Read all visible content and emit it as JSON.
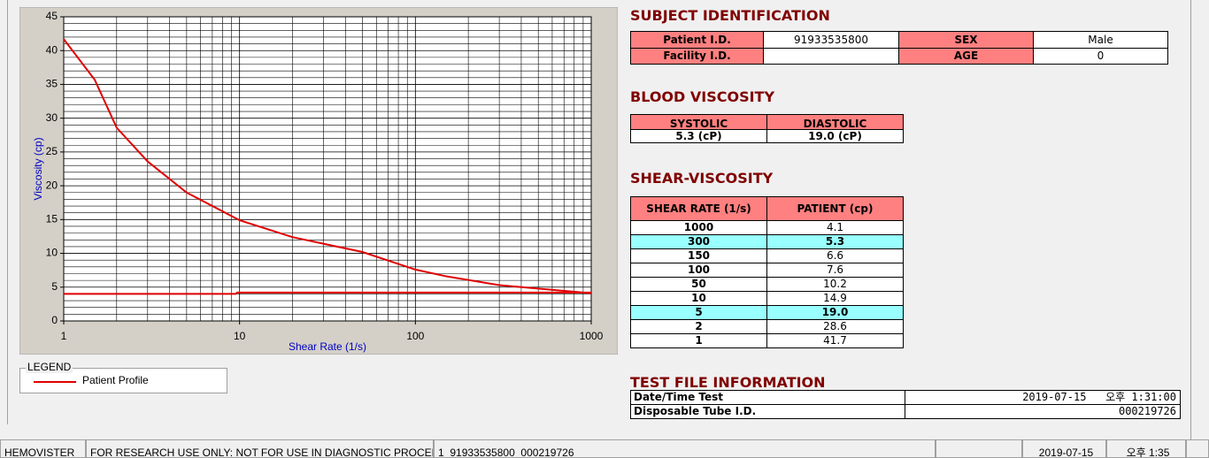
{
  "chart_data": {
    "type": "line",
    "xlabel": "Shear Rate (1/s)",
    "ylabel": "Viscosity (cp)",
    "xscale": "log",
    "xlim": [
      1,
      1000
    ],
    "xticks": [
      1,
      10,
      100,
      1000
    ],
    "ylim": [
      0,
      45
    ],
    "yticks": [
      0,
      5,
      10,
      15,
      20,
      25,
      30,
      35,
      40,
      45
    ],
    "grid": true,
    "series": [
      {
        "name": "Patient Profile",
        "color": "#e00000",
        "x": [
          1,
          1.5,
          2,
          3,
          5,
          10,
          20,
          50,
          100,
          150,
          300,
          1000
        ],
        "values": [
          41.7,
          35.7,
          28.6,
          23.6,
          19.0,
          14.9,
          12.4,
          10.2,
          7.6,
          6.6,
          5.3,
          4.1
        ]
      },
      {
        "color": "#e00000",
        "x": [
          1,
          9.5,
          9.7,
          1000
        ],
        "values": [
          4.0,
          4.0,
          4.2,
          4.2
        ]
      }
    ],
    "legend": {
      "title": "LEGEND"
    }
  },
  "subject": {
    "title": "SUBJECT IDENTIFICATION",
    "rows": [
      [
        {
          "label": "Patient I.D.",
          "value": "91933535800"
        },
        {
          "label": "SEX",
          "value": "Male"
        }
      ],
      [
        {
          "label": "Facility I.D."
        },
        {
          "label": "AGE",
          "value": "0"
        }
      ]
    ]
  },
  "blood": {
    "title": "BLOOD VISCOSITY",
    "headers": [
      "SYSTOLIC",
      "DIASTOLIC"
    ],
    "values": [
      "5.3 (cP)",
      "19.0 (cP)"
    ]
  },
  "shear": {
    "title": "SHEAR-VISCOSITY",
    "headers": [
      "SHEAR RATE (1/s)",
      "PATIENT (cp)"
    ],
    "rows": [
      {
        "rate": "1000",
        "value": "4.1"
      },
      {
        "rate": "300",
        "value": "5.3",
        "highlight": true
      },
      {
        "rate": "150",
        "value": "6.6"
      },
      {
        "rate": "100",
        "value": "7.6"
      },
      {
        "rate": "50",
        "value": "10.2"
      },
      {
        "rate": "10",
        "value": "14.9"
      },
      {
        "rate": "5",
        "value": "19.0",
        "highlight": true
      },
      {
        "rate": "2",
        "value": "28.6"
      },
      {
        "rate": "1",
        "value": "41.7"
      }
    ]
  },
  "testfile": {
    "title": "TEST FILE INFORMATION",
    "rows": [
      {
        "label": "Date/Time Test",
        "value": "2019-07-15   오후 1:31:00"
      },
      {
        "label": "Disposable Tube I.D.",
        "value": "000219726"
      }
    ]
  },
  "statusbar": {
    "app": "HEMOVISTER",
    "notice": "FOR RESEARCH USE ONLY: NOT FOR USE IN DIAGNOSTIC PROCEDURES",
    "record": "1  91933535800  000219726",
    "date": "2019-07-15",
    "time": "오후 1:35"
  }
}
